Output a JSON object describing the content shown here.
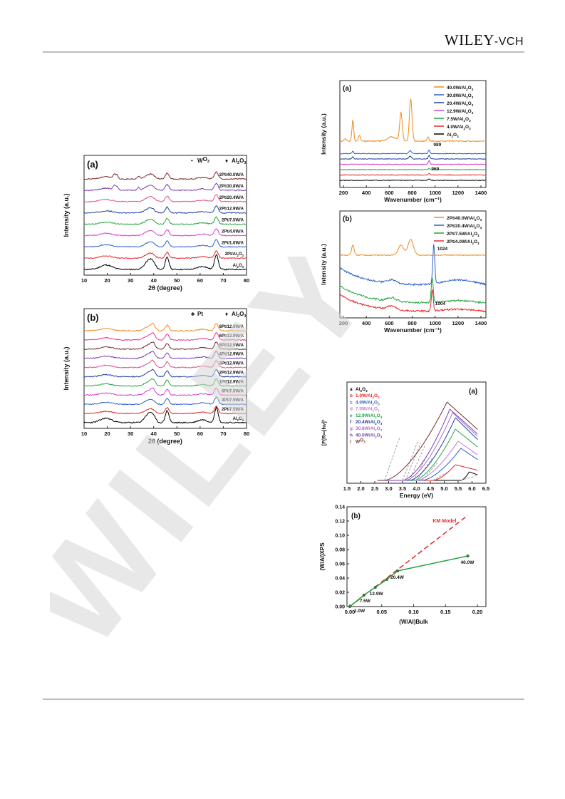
{
  "header": {
    "brand_main": "WILEY",
    "brand_sub": "-VCH"
  },
  "watermark": {
    "text": "WILEY"
  },
  "figures": {
    "xrd_a": {
      "panel": "(a)",
      "legend": [
        {
          "symbol": "•",
          "name": "WO3"
        },
        {
          "symbol": "♦",
          "name": "Al2O3"
        }
      ],
      "xlabel": "2θ (degree)",
      "ylabel": "Intensity (a.u.)",
      "xticks": [
        "10",
        "20",
        "30",
        "40",
        "50",
        "60",
        "70",
        "80"
      ],
      "traces": [
        {
          "label": "Al2O3",
          "color": "#000000"
        },
        {
          "label": "2Pt/Al2O3",
          "color": "#e8272b"
        },
        {
          "label": "2Pt/1.0W/A",
          "color": "#2c5fcb"
        },
        {
          "label": "2Pt/4.0W/A",
          "color": "#d43fc9"
        },
        {
          "label": "2Pt/7.5W/A",
          "color": "#27a340"
        },
        {
          "label": "2Pt/12.9W/A",
          "color": "#1f3fa0"
        },
        {
          "label": "2Pt/20.4W/A",
          "color": "#e0528c"
        },
        {
          "label": "2Pt/30.8W/A",
          "color": "#7a3fb0"
        },
        {
          "label": "2Pt/40.0W/A",
          "color": "#7a2a2a"
        }
      ]
    },
    "xrd_b": {
      "panel": "(b)",
      "legend": [
        {
          "symbol": "♣",
          "name": "Pt"
        },
        {
          "symbol": "♦",
          "name": "Al2O3"
        }
      ],
      "xlabel": "2θ (degree)",
      "ylabel": "Intensity (a.u.)",
      "xticks": [
        "10",
        "20",
        "30",
        "40",
        "50",
        "60",
        "70",
        "80"
      ],
      "traces": [
        {
          "label": "Al2O3",
          "color": "#000000"
        },
        {
          "label": "2Pt/7.5W/A",
          "color": "#e8272b"
        },
        {
          "label": "4Pt/7.5W/A",
          "color": "#2c5fcb"
        },
        {
          "label": "6Pt/7.5W/A",
          "color": "#d43fc9"
        },
        {
          "label": "1Pt/12.9W/A",
          "color": "#27a340"
        },
        {
          "label": "2Pt/12.9W/A",
          "color": "#1f3fa0"
        },
        {
          "label": "3Pt/12.9W/A",
          "color": "#e0528c"
        },
        {
          "label": "4Pt/12.9W/A",
          "color": "#7a3fb0"
        },
        {
          "label": "5Pt/12.9W/A",
          "color": "#7a2a2a"
        },
        {
          "label": "6Pt/12.9W/A",
          "color": "#e8338a"
        },
        {
          "label": "8Pt/12.9W/A",
          "color": "#f08a1c"
        }
      ]
    },
    "raman_a": {
      "panel": "(a)",
      "xlabel": "Wavenumber (cm⁻¹)",
      "ylabel": "Intensity (a.u.)",
      "xticks": [
        "200",
        "400",
        "600",
        "800",
        "1000",
        "1200",
        "1400"
      ],
      "annotations": [
        "989",
        "969"
      ],
      "traces": [
        {
          "label": "Al2O3",
          "color": "#000000"
        },
        {
          "label": "4.0W/Al2O3",
          "color": "#e8272b"
        },
        {
          "label": "7.5W/Al2O3",
          "color": "#27a340"
        },
        {
          "label": "12.9W/Al2O3",
          "color": "#d43fc9"
        },
        {
          "label": "20.4W/Al2O3",
          "color": "#1f3fa0"
        },
        {
          "label": "30.8W/Al2O3",
          "color": "#2c5fcb"
        },
        {
          "label": "40.0W/Al2O3",
          "color": "#f08a1c"
        }
      ]
    },
    "raman_b": {
      "panel": "(b)",
      "xlabel": "Wavenumber (cm⁻¹)",
      "ylabel": "Intensity (a.u.)",
      "xticks": [
        "200",
        "400",
        "600",
        "800",
        "1000",
        "1200",
        "1400"
      ],
      "annotations": [
        "1024",
        "1004"
      ],
      "traces": [
        {
          "label": "2Pt/4.0W/Al2O3",
          "color": "#e8272b"
        },
        {
          "label": "2Pt/7.5W/Al2O3",
          "color": "#27a340"
        },
        {
          "label": "2Pt/20.4W/Al2O3",
          "color": "#2c5fcb"
        },
        {
          "label": "2Pt/40.0W/Al2O3",
          "color": "#f08a1c"
        }
      ]
    },
    "uvvis_a": {
      "panel": "(a)",
      "xlabel": "Energy (eV)",
      "ylabel": "[F(R∞)hν]²",
      "xticks": [
        "1.5",
        "2.0",
        "2.5",
        "3.0",
        "3.5",
        "4.0",
        "4.5",
        "5.0",
        "5.5",
        "6.0",
        "6.5"
      ],
      "legend": [
        {
          "letter": "a",
          "name": "Al2O3",
          "color": "#000000"
        },
        {
          "letter": "b",
          "name": "1.0W/Al2O3",
          "color": "#e8272b"
        },
        {
          "letter": "c",
          "name": "4.0W/Al2O3",
          "color": "#2c5fcb"
        },
        {
          "letter": "d",
          "name": "7.5W/Al2O3",
          "color": "#c77ad9"
        },
        {
          "letter": "e",
          "name": "12.9W/Al2O3",
          "color": "#27a340"
        },
        {
          "letter": "f",
          "name": "20.4W/Al2O3",
          "color": "#1f3fa0"
        },
        {
          "letter": "g",
          "name": "30.8W/Al2O3",
          "color": "#a66fd0"
        },
        {
          "letter": "h",
          "name": "40.0W/Al2O3",
          "color": "#7a3fb0"
        },
        {
          "letter": "i",
          "name": "WO3",
          "color": "#7a2a2a"
        }
      ]
    },
    "km_b": {
      "panel": "(b)",
      "xlabel": "(W/Al)Bulk",
      "ylabel": "(W/Al)XPS",
      "model_label": "KM Model",
      "xticks": [
        "0.00",
        "0.05",
        "0.10",
        "0.15",
        "0.20"
      ],
      "yticks": [
        "0.00",
        "0.02",
        "0.04",
        "0.06",
        "0.08",
        "0.10",
        "0.12",
        "0.14"
      ],
      "chart_data": {
        "type": "line",
        "xlim": [
          0,
          0.2
        ],
        "ylim": [
          0,
          0.14
        ],
        "series": [
          {
            "name": "KM Model",
            "x": [
              0.0,
              0.185
            ],
            "y": [
              0.0,
              0.128
            ]
          },
          {
            "x": [
              0.0,
              0.022,
              0.04,
              0.058,
              0.075,
              0.185
            ],
            "y": [
              0.0,
              0.016,
              0.027,
              0.038,
              0.05,
              0.071
            ]
          }
        ],
        "point_labels": [
          "1.0W",
          "7.5W",
          "12.9W",
          "20.4W",
          "40.0W"
        ]
      }
    }
  }
}
